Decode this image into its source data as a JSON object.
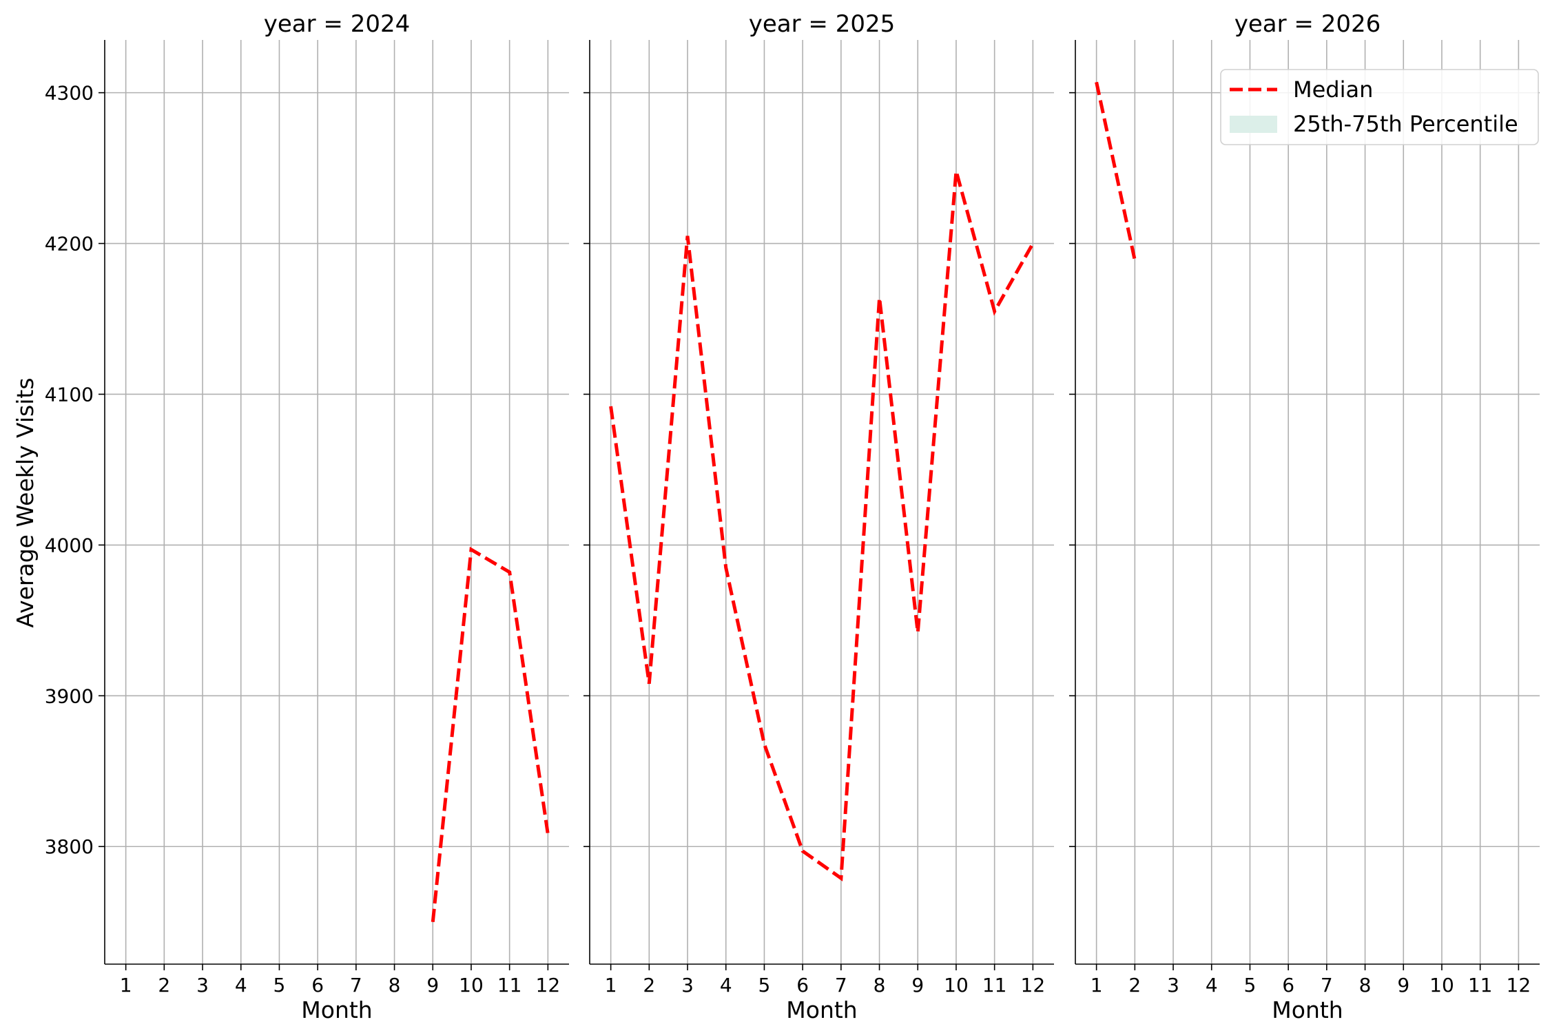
{
  "chart_data": {
    "type": "line",
    "ylabel": "Average Weekly Visits",
    "ylim": [
      3722,
      4335
    ],
    "yticks": [
      3800,
      3900,
      4000,
      4100,
      4200,
      4300
    ],
    "xticks": [
      1,
      2,
      3,
      4,
      5,
      6,
      7,
      8,
      9,
      10,
      11,
      12
    ],
    "xlim": [
      0.45,
      12.55
    ],
    "grid": true,
    "legend": {
      "placement": "upper-right (year = 2026 panel)",
      "entries": [
        {
          "label": "Median",
          "style": "dashed line",
          "color": "#ff0000"
        },
        {
          "label": "25th-75th Percentile",
          "style": "filled band",
          "color": "#dcefe9"
        }
      ]
    },
    "panels": [
      {
        "title": "year = 2024",
        "xlabel": "Month",
        "series": [
          {
            "name": "Median",
            "x": [
              9,
              10,
              11,
              12
            ],
            "y": [
              3750,
              3997,
              3982,
              3808
            ]
          }
        ]
      },
      {
        "title": "year = 2025",
        "xlabel": "Month",
        "series": [
          {
            "name": "Median",
            "x": [
              1,
              2,
              3,
              4,
              5,
              6,
              7,
              8,
              9,
              10,
              11,
              12
            ],
            "y": [
              4092,
              3908,
              4205,
              3985,
              3868,
              3797,
              3779,
              4164,
              3942,
              4248,
              4155,
              4200
            ]
          }
        ]
      },
      {
        "title": "year = 2026",
        "xlabel": "Month",
        "series": [
          {
            "name": "Median",
            "x": [
              1,
              2
            ],
            "y": [
              4307,
              4189
            ]
          }
        ]
      }
    ]
  },
  "colors": {
    "median_line": "#ff0000",
    "percentile_band": "#dcefe9",
    "grid": "#b0b0b0",
    "axes": "#000000"
  }
}
